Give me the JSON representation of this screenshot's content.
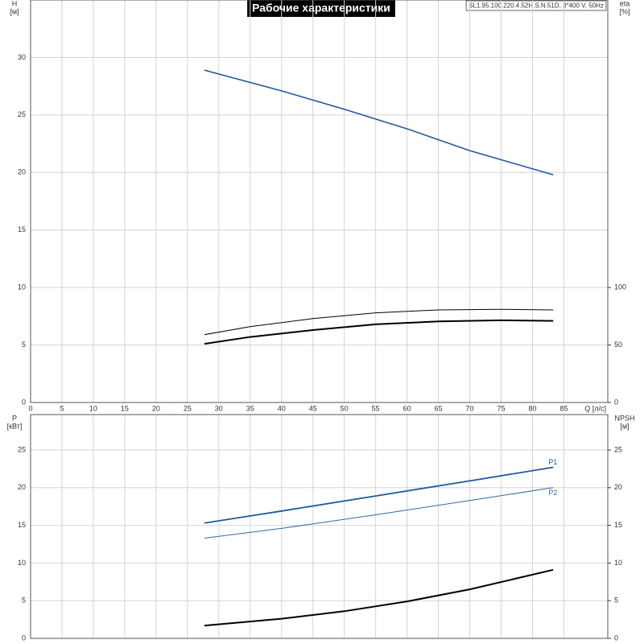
{
  "chart_data": [
    {
      "type": "line",
      "title": "Рабочие характеристики",
      "info": "SL1.95.100.220.4.52H.S.N.51D, 3*400 V, 50Hz",
      "ylabel": [
        "H",
        "[м]"
      ],
      "y2label": [
        "eta",
        "[%]"
      ],
      "xlabel": "Q [л/с]",
      "xlim": [
        0,
        92
      ],
      "xticks": [
        0,
        5,
        10,
        15,
        20,
        25,
        30,
        35,
        40,
        45,
        50,
        55,
        60,
        65,
        70,
        75,
        80,
        85
      ],
      "ylim": [
        0,
        35
      ],
      "yticks": [
        0,
        5,
        10,
        15,
        20,
        25,
        30
      ],
      "y2lim": [
        0,
        350
      ],
      "y2ticks": [
        0,
        50,
        100
      ],
      "grid": true,
      "series": [
        {
          "color": "#1f5a9c",
          "width": 1.6,
          "x": [
            27.7,
            40,
            50,
            60,
            70,
            83.3
          ],
          "values": [
            28.9,
            27.1,
            25.5,
            23.8,
            21.9,
            19.8
          ]
        },
        {
          "color": "#000000",
          "width": 1,
          "axis": "y2",
          "x": [
            27.7,
            35,
            45,
            55,
            65,
            75,
            83.3
          ],
          "values": [
            59,
            66,
            73,
            78,
            80.5,
            81,
            80.5
          ]
        },
        {
          "color": "#000000",
          "width": 2,
          "axis": "y2",
          "x": [
            27.7,
            35,
            45,
            55,
            65,
            75,
            83.3
          ],
          "values": [
            51,
            57,
            63,
            68,
            70.5,
            71.5,
            71
          ]
        }
      ]
    },
    {
      "type": "line",
      "ylabel": [
        "P",
        "[кВт]"
      ],
      "y2label": [
        "NPSH",
        "[м]"
      ],
      "ylim": [
        0,
        29.7
      ],
      "yticks": [
        0,
        5,
        10,
        15,
        20,
        25
      ],
      "y2lim": [
        0,
        29.7
      ],
      "y2ticks": [
        0,
        5,
        10,
        15,
        20,
        25
      ],
      "grid": true,
      "series": [
        {
          "name": "P1",
          "color": "#1f5a9c",
          "width": 1.8,
          "x": [
            27.7,
            40,
            55,
            70,
            83.3
          ],
          "values": [
            15.3,
            16.9,
            18.9,
            20.9,
            22.7
          ]
        },
        {
          "name": "P2",
          "color": "#2f6aa8",
          "width": 1,
          "x": [
            27.7,
            40,
            55,
            70,
            83.3
          ],
          "values": [
            13.3,
            14.6,
            16.4,
            18.3,
            20.0
          ]
        },
        {
          "color": "#000000",
          "width": 2,
          "axis": "y2",
          "x": [
            27.7,
            40,
            50,
            60,
            70,
            83.3
          ],
          "values": [
            1.7,
            2.6,
            3.6,
            4.9,
            6.5,
            9.1
          ]
        }
      ]
    }
  ]
}
